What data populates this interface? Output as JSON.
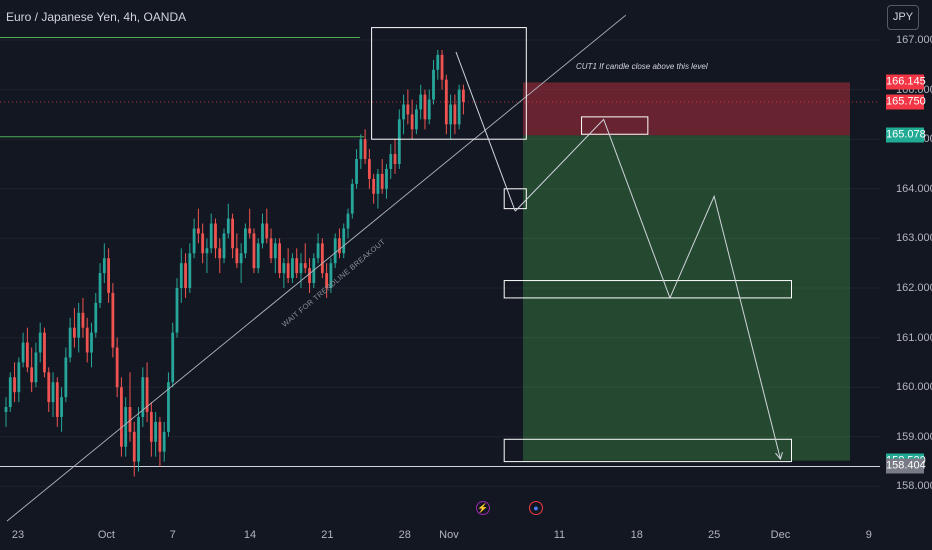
{
  "header": {
    "title": "Euro / Japanese Yen, 4h, OANDA"
  },
  "currency_button": {
    "label": "JPY"
  },
  "annotations": {
    "cut_note": "CUT1 If candle close above this level",
    "trendline_note": "WAIT FOR TRENDLINE BREAKOUT"
  },
  "price_labels": [
    {
      "value": "166.145",
      "price": 166.145,
      "color": "#f23645"
    },
    {
      "value": "165.750",
      "price": 165.75,
      "color": "#f23645"
    },
    {
      "value": "165.078",
      "price": 165.078,
      "color": "#22ab94"
    },
    {
      "value": "158.520",
      "price": 158.52,
      "color": "#22ab94"
    },
    {
      "value": "158.404",
      "price": 158.404,
      "color": "#787b86"
    }
  ],
  "event_icons": [
    {
      "name": "lightning-event-icon",
      "glyph": "⚡",
      "color": "#9c27b0"
    },
    {
      "name": "economic-event-icon",
      "glyph": "●",
      "color": "#2962ff"
    }
  ],
  "chart_data": {
    "type": "candlestick",
    "instrument": "Euro / Japanese Yen",
    "timeframe": "4h",
    "source": "OANDA",
    "y_axis": {
      "ticks": [
        "167.000",
        "166.000",
        "165.000",
        "164.000",
        "163.000",
        "162.000",
        "161.000",
        "160.000",
        "159.000",
        "158.000"
      ],
      "ylim": [
        157.8,
        167.2
      ]
    },
    "x_axis": {
      "ticks": [
        "23",
        "Oct",
        "7",
        "14",
        "21",
        "28",
        "Nov",
        "11",
        "18",
        "25",
        "Dec",
        "9"
      ]
    },
    "current_price": 165.75,
    "trade_setup": {
      "stop_zone": [
        165.078,
        166.145
      ],
      "entry": 165.078,
      "target": 158.52,
      "low_marker": 158.404
    },
    "projected_path": [
      {
        "date": "Nov 7",
        "price": 163.55
      },
      {
        "date": "Nov 15",
        "price": 165.4
      },
      {
        "date": "Nov 21",
        "price": 161.8
      },
      {
        "date": "Nov 25",
        "price": 163.85
      },
      {
        "date": "Dec 1",
        "price": 158.55
      }
    ],
    "zones": [
      {
        "date_range": [
          "Oct 25",
          "Nov 8"
        ],
        "price_range": [
          165.0,
          167.25
        ]
      },
      {
        "date_range": [
          "Nov 6",
          "Nov 8"
        ],
        "price_range": [
          163.6,
          164.0
        ]
      },
      {
        "date_range": [
          "Nov 13",
          "Nov 19"
        ],
        "price_range": [
          165.1,
          165.45
        ]
      },
      {
        "date_range": [
          "Nov 6",
          "Dec 2"
        ],
        "price_range": [
          161.8,
          162.15
        ]
      },
      {
        "date_range": [
          "Nov 6",
          "Dec 2"
        ],
        "price_range": [
          158.5,
          158.95
        ]
      }
    ],
    "horizontal_levels": [
      {
        "price": 167.05,
        "from": "Sep 18",
        "to": "Oct 24"
      },
      {
        "price": 165.05,
        "from": "Sep 18",
        "to": "Oct 24"
      },
      {
        "price": 158.4,
        "from": "Sep 18",
        "to": "Dec 5"
      }
    ],
    "trendline": [
      {
        "date": "Sep 22",
        "price": 157.3
      },
      {
        "date": "Nov 17",
        "price": 167.5
      }
    ],
    "candles": [
      [
        159.5,
        159.8,
        159.2,
        159.6
      ],
      [
        159.6,
        160.3,
        159.5,
        160.2
      ],
      [
        160.2,
        160.5,
        159.7,
        159.9
      ],
      [
        159.9,
        160.6,
        159.7,
        160.5
      ],
      [
        160.5,
        161.1,
        160.4,
        160.9
      ],
      [
        160.9,
        161.2,
        160.3,
        160.4
      ],
      [
        160.4,
        160.8,
        159.9,
        160.1
      ],
      [
        160.1,
        160.9,
        160.0,
        160.7
      ],
      [
        160.7,
        161.3,
        160.5,
        161.1
      ],
      [
        161.1,
        161.2,
        160.2,
        160.3
      ],
      [
        160.3,
        160.4,
        159.5,
        159.7
      ],
      [
        159.7,
        160.3,
        159.4,
        160.1
      ],
      [
        160.1,
        160.2,
        159.2,
        159.4
      ],
      [
        159.4,
        160.0,
        159.1,
        159.8
      ],
      [
        159.8,
        160.8,
        159.7,
        160.6
      ],
      [
        160.6,
        161.4,
        160.5,
        161.2
      ],
      [
        161.2,
        161.6,
        160.8,
        161.0
      ],
      [
        161.0,
        161.7,
        160.7,
        161.5
      ],
      [
        161.5,
        161.8,
        161.0,
        161.2
      ],
      [
        161.2,
        161.4,
        160.5,
        160.7
      ],
      [
        160.7,
        161.3,
        160.4,
        161.1
      ],
      [
        161.1,
        161.9,
        161.0,
        161.7
      ],
      [
        161.7,
        162.5,
        161.6,
        162.3
      ],
      [
        162.3,
        162.9,
        162.1,
        162.6
      ],
      [
        162.6,
        162.8,
        161.7,
        161.9
      ],
      [
        161.9,
        162.1,
        160.6,
        160.8
      ],
      [
        160.8,
        161.0,
        159.8,
        160.0
      ],
      [
        160.0,
        160.2,
        158.6,
        158.8
      ],
      [
        158.8,
        159.8,
        158.6,
        159.6
      ],
      [
        159.6,
        160.3,
        158.9,
        159.1
      ],
      [
        159.1,
        159.3,
        158.2,
        158.5
      ],
      [
        158.5,
        159.6,
        158.3,
        159.4
      ],
      [
        159.4,
        160.4,
        159.2,
        160.2
      ],
      [
        160.2,
        160.5,
        159.3,
        159.5
      ],
      [
        159.5,
        159.7,
        158.6,
        158.9
      ],
      [
        158.9,
        159.5,
        158.6,
        159.3
      ],
      [
        159.3,
        159.4,
        158.4,
        158.7
      ],
      [
        158.7,
        159.3,
        158.5,
        159.1
      ],
      [
        159.1,
        160.3,
        159.0,
        160.1
      ],
      [
        160.1,
        161.3,
        160.0,
        161.1
      ],
      [
        161.1,
        162.2,
        161.0,
        162.0
      ],
      [
        162.0,
        162.8,
        161.7,
        162.5
      ],
      [
        162.5,
        162.7,
        161.8,
        162.0
      ],
      [
        162.0,
        162.9,
        161.9,
        162.7
      ],
      [
        162.7,
        163.4,
        162.6,
        163.2
      ],
      [
        163.2,
        163.6,
        162.9,
        163.1
      ],
      [
        163.1,
        163.3,
        162.5,
        162.7
      ],
      [
        162.7,
        163.0,
        162.3,
        162.8
      ],
      [
        162.8,
        163.5,
        162.7,
        163.3
      ],
      [
        163.3,
        163.4,
        162.6,
        162.8
      ],
      [
        162.8,
        163.0,
        162.3,
        162.6
      ],
      [
        162.6,
        163.2,
        162.5,
        163.1
      ],
      [
        163.1,
        163.7,
        163.0,
        163.4
      ],
      [
        163.4,
        163.5,
        162.6,
        162.8
      ],
      [
        162.8,
        163.1,
        162.4,
        162.5
      ],
      [
        162.5,
        162.9,
        162.1,
        162.7
      ],
      [
        162.7,
        163.3,
        162.6,
        163.2
      ],
      [
        163.2,
        163.6,
        163.0,
        163.1
      ],
      [
        163.1,
        163.2,
        162.3,
        162.4
      ],
      [
        162.4,
        163.0,
        162.3,
        162.9
      ],
      [
        162.9,
        163.5,
        162.8,
        163.3
      ],
      [
        163.3,
        163.6,
        162.9,
        163.0
      ],
      [
        163.0,
        163.2,
        162.5,
        162.6
      ],
      [
        162.6,
        163.0,
        162.3,
        162.9
      ],
      [
        162.9,
        163.0,
        162.2,
        162.3
      ],
      [
        162.3,
        162.6,
        162.0,
        162.5
      ],
      [
        162.5,
        162.8,
        162.1,
        162.2
      ],
      [
        162.2,
        162.7,
        162.1,
        162.6
      ],
      [
        162.6,
        162.8,
        162.2,
        162.3
      ],
      [
        162.3,
        162.7,
        162.0,
        162.5
      ],
      [
        162.5,
        162.9,
        162.3,
        162.4
      ],
      [
        162.4,
        162.6,
        161.9,
        162.1
      ],
      [
        162.1,
        162.7,
        162.0,
        162.6
      ],
      [
        162.6,
        163.1,
        162.5,
        162.9
      ],
      [
        162.9,
        163.0,
        162.2,
        162.3
      ],
      [
        162.3,
        162.5,
        161.8,
        162.0
      ],
      [
        162.0,
        162.6,
        161.9,
        162.5
      ],
      [
        162.5,
        163.1,
        162.4,
        163.0
      ],
      [
        163.0,
        163.2,
        162.6,
        162.7
      ],
      [
        162.7,
        163.3,
        162.6,
        163.2
      ],
      [
        163.2,
        163.6,
        163.0,
        163.5
      ],
      [
        163.5,
        164.2,
        163.4,
        164.1
      ],
      [
        164.1,
        164.8,
        164.0,
        164.6
      ],
      [
        164.6,
        165.1,
        164.4,
        165.0
      ],
      [
        165.0,
        165.2,
        164.5,
        164.6
      ],
      [
        164.6,
        164.8,
        164.0,
        164.2
      ],
      [
        164.2,
        164.3,
        163.7,
        163.9
      ],
      [
        163.9,
        164.4,
        163.6,
        164.3
      ],
      [
        164.3,
        164.6,
        163.9,
        164.0
      ],
      [
        164.0,
        164.5,
        163.8,
        164.4
      ],
      [
        164.4,
        164.9,
        164.2,
        164.7
      ],
      [
        164.7,
        165.0,
        164.3,
        164.5
      ],
      [
        164.5,
        165.6,
        164.4,
        165.4
      ],
      [
        165.4,
        165.9,
        165.1,
        165.7
      ],
      [
        165.7,
        166.0,
        165.3,
        165.5
      ],
      [
        165.5,
        165.8,
        165.0,
        165.2
      ],
      [
        165.2,
        165.7,
        165.1,
        165.6
      ],
      [
        165.6,
        166.1,
        165.4,
        165.9
      ],
      [
        165.9,
        166.0,
        165.2,
        165.4
      ],
      [
        165.4,
        166.0,
        165.3,
        165.8
      ],
      [
        165.8,
        166.6,
        165.7,
        166.4
      ],
      [
        166.4,
        166.8,
        166.2,
        166.7
      ],
      [
        166.7,
        166.8,
        166.0,
        166.2
      ],
      [
        166.2,
        166.3,
        165.1,
        165.3
      ],
      [
        165.3,
        165.9,
        165.0,
        165.7
      ],
      [
        165.7,
        165.9,
        165.1,
        165.3
      ],
      [
        165.3,
        166.1,
        165.2,
        166.0
      ],
      [
        166.0,
        166.1,
        165.5,
        165.75
      ]
    ]
  }
}
